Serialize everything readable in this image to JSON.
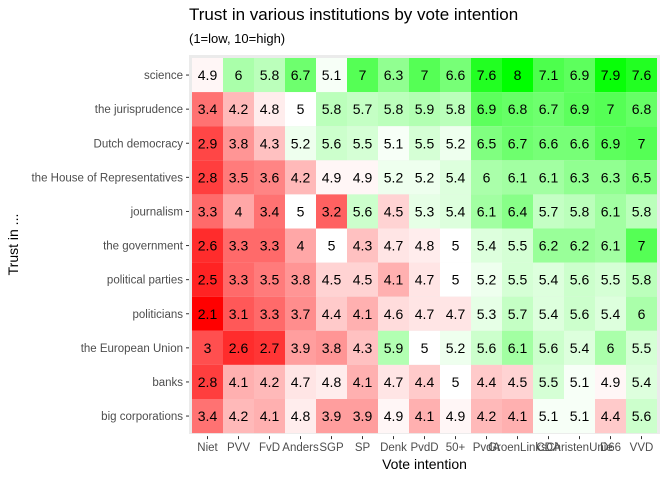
{
  "chart_data": {
    "type": "heatmap",
    "title": "Trust in various institutions by vote intention",
    "subtitle": "(1=low, 10=high)",
    "xlabel": "Vote intention",
    "ylabel": "Trust in ...",
    "x_categories": [
      "Niet",
      "PVV",
      "FvD",
      "Anders",
      "SGP",
      "SP",
      "Denk",
      "PvdD",
      "50+",
      "PvdA",
      "GroenLinks",
      "CDA",
      "ChristenUnie",
      "D66",
      "VVD"
    ],
    "y_categories": [
      "science",
      "the jurisprudence",
      "Dutch democracy",
      "the House of Representatives",
      "journalism",
      "the government",
      "political parties",
      "politicians",
      "the European Union",
      "banks",
      "big corporations"
    ],
    "values": [
      [
        4.9,
        6,
        5.8,
        6.7,
        5.1,
        7,
        6.3,
        7,
        6.6,
        7.6,
        8,
        7.1,
        6.9,
        7.9,
        7.6
      ],
      [
        3.4,
        4.2,
        4.8,
        5,
        5.8,
        5.7,
        5.8,
        5.9,
        5.8,
        6.9,
        6.8,
        6.7,
        6.9,
        7,
        6.8
      ],
      [
        2.9,
        3.8,
        4.3,
        5.2,
        5.6,
        5.5,
        5.1,
        5.5,
        5.2,
        6.5,
        6.7,
        6.6,
        6.6,
        6.9,
        7
      ],
      [
        2.8,
        3.5,
        3.6,
        4.2,
        4.9,
        4.9,
        5.2,
        5.2,
        5.4,
        6,
        6.1,
        6.1,
        6.3,
        6.3,
        6.5
      ],
      [
        3.3,
        4,
        3.4,
        5,
        3.2,
        5.6,
        4.5,
        5.3,
        5.4,
        6.1,
        6.4,
        5.7,
        5.8,
        6.1,
        5.8
      ],
      [
        2.6,
        3.3,
        3.3,
        4,
        5,
        4.3,
        4.7,
        4.8,
        5,
        5.4,
        5.5,
        6.2,
        6.2,
        6.1,
        7
      ],
      [
        2.5,
        3.3,
        3.5,
        3.8,
        4.5,
        4.5,
        4.1,
        4.7,
        5,
        5.2,
        5.5,
        5.4,
        5.6,
        5.5,
        5.8
      ],
      [
        2.1,
        3.1,
        3.3,
        3.7,
        4.4,
        4.1,
        4.6,
        4.7,
        4.7,
        5.3,
        5.7,
        5.4,
        5.6,
        5.4,
        6
      ],
      [
        3,
        2.6,
        2.7,
        3.9,
        3.8,
        4.3,
        5.9,
        5,
        5.2,
        5.6,
        6.1,
        5.6,
        5.4,
        6,
        5.5
      ],
      [
        2.8,
        4.1,
        4.2,
        4.7,
        4.8,
        4.1,
        4.7,
        4.4,
        5,
        4.4,
        4.5,
        5.5,
        5.1,
        4.9,
        5.4
      ],
      [
        3.4,
        4.2,
        4.1,
        4.8,
        3.9,
        3.9,
        4.9,
        4.1,
        4.9,
        4.2,
        4.1,
        5.1,
        5.1,
        4.4,
        5.6
      ]
    ],
    "color_scale": {
      "low": "#ff0000",
      "mid": "#ffffff",
      "high": "#00ff00",
      "midpoint": 5
    },
    "legend": "none",
    "grid": true
  }
}
